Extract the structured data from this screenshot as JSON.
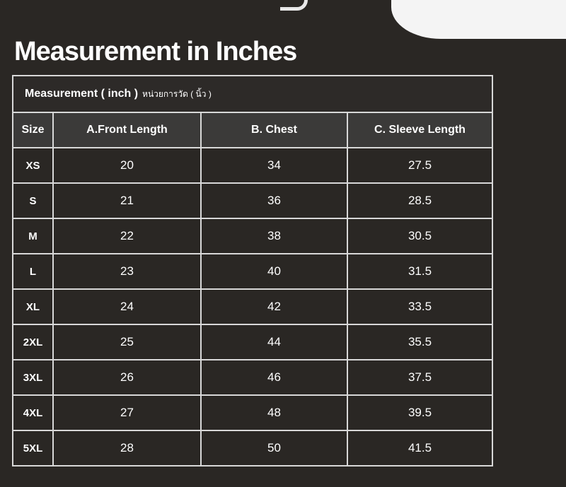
{
  "title": "Measurement in Inches",
  "caption": {
    "main": "Measurement ( inch )",
    "thai": "หน่วยการวัด ( นิ้ว )"
  },
  "columns": [
    "Size",
    "A.Front Length",
    "B. Chest",
    "C. Sleeve Length"
  ],
  "rows": [
    [
      "XS",
      "20",
      "34",
      "27.5"
    ],
    [
      "S",
      "21",
      "36",
      "28.5"
    ],
    [
      "M",
      "22",
      "38",
      "30.5"
    ],
    [
      "L",
      "23",
      "40",
      "31.5"
    ],
    [
      "XL",
      "24",
      "42",
      "33.5"
    ],
    [
      "2XL",
      "25",
      "44",
      "35.5"
    ],
    [
      "3XL",
      "26",
      "46",
      "37.5"
    ],
    [
      "4XL",
      "27",
      "48",
      "39.5"
    ],
    [
      "5XL",
      "28",
      "50",
      "41.5"
    ]
  ]
}
